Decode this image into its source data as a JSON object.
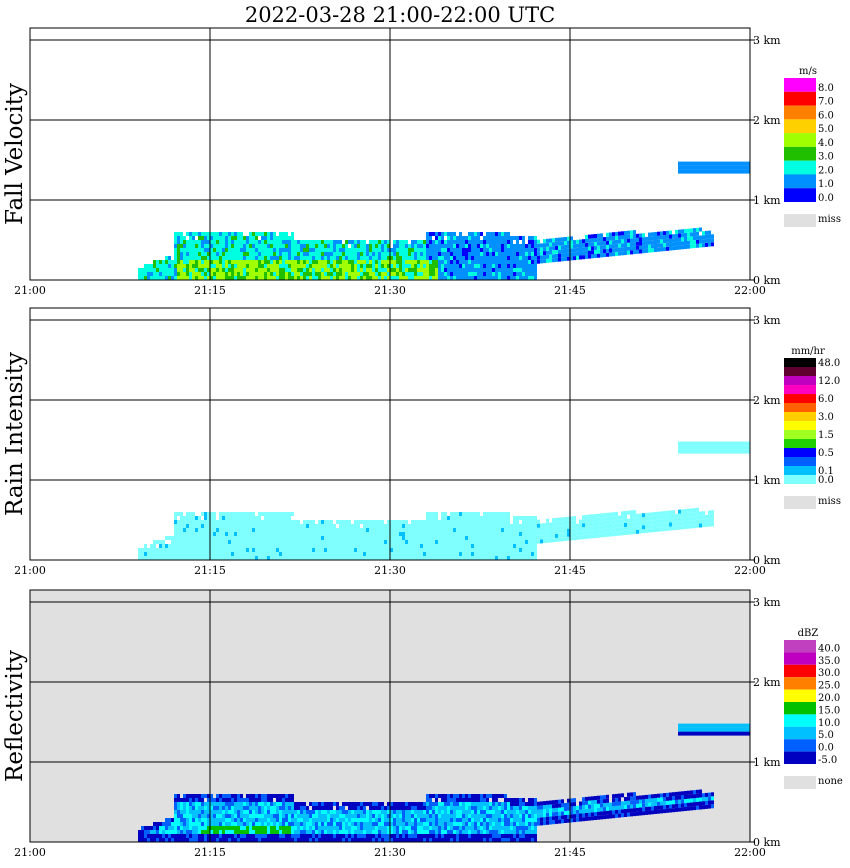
{
  "page_title": "2022-03-28   21:00-22:00 UTC",
  "x_ticks": [
    "21:00",
    "21:15",
    "21:30",
    "21:45",
    "22:00"
  ],
  "y_ticks": [
    "0 km",
    "1 km",
    "2 km",
    "3 km"
  ],
  "panels": [
    {
      "id": "fall-velocity",
      "ylabel": "Fall Velocity",
      "unit": "m/s",
      "background": "#ffffff",
      "legend_labels": [
        "8.0",
        "7.0",
        "6.0",
        "5.0",
        "4.0",
        "3.0",
        "2.0",
        "1.0",
        "0.0"
      ],
      "legend_colors": [
        "#ff00ff",
        "#ff0000",
        "#ff8000",
        "#ffd000",
        "#a0ff00",
        "#20c000",
        "#00ffe0",
        "#0090ff",
        "#0000ff"
      ],
      "miss_label": "miss"
    },
    {
      "id": "rain-intensity",
      "ylabel": "Rain Intensity",
      "unit": "mm/hr",
      "background": "#ffffff",
      "legend_labels": [
        "48.0",
        "",
        "12.0",
        "",
        "6.0",
        "",
        "3.0",
        "",
        "1.5",
        "",
        "0.5",
        "",
        "0.1",
        "0.0"
      ],
      "legend_colors": [
        "#000000",
        "#600030",
        "#c000c0",
        "#ff00c0",
        "#ff0000",
        "#ff6000",
        "#ffd000",
        "#ffff00",
        "#a0ff20",
        "#20d000",
        "#0000ff",
        "#0060ff",
        "#00c0ff",
        "#80ffff"
      ],
      "miss_label": "miss"
    },
    {
      "id": "reflectivity",
      "ylabel": "Reflectivity",
      "unit": "dBZ",
      "background": "#e0e0e0",
      "legend_labels": [
        "40.0",
        "35.0",
        "30.0",
        "25.0",
        "20.0",
        "15.0",
        "10.0",
        "5.0",
        "0.0",
        "-5.0"
      ],
      "legend_colors": [
        "#c040c0",
        "#c000c0",
        "#ff0000",
        "#ff8000",
        "#ffff00",
        "#00c000",
        "#00ffff",
        "#00c0ff",
        "#0060ff",
        "#0000c0"
      ],
      "miss_label": "none"
    }
  ],
  "chart_data": [
    {
      "type": "heatmap",
      "title": "Fall Velocity",
      "unit": "m/s",
      "x_range": [
        "21:00",
        "22:00"
      ],
      "ylim_km": [
        0,
        3.2
      ],
      "echo_regions": [
        {
          "x_start": "21:09",
          "x_end": "21:57",
          "y_min_km": 0.0,
          "y_max_km": 0.65,
          "dominant_value_mps": "1.0-3.0"
        },
        {
          "x_start": "21:10",
          "x_end": "21:34",
          "y_min_km": 0.0,
          "y_max_km": 0.3,
          "dominant_value_mps": "4.0-5.0"
        },
        {
          "x_start": "21:54",
          "x_end": "22:00",
          "y_min_km": 1.33,
          "y_max_km": 1.5,
          "dominant_value_mps": "1.0-2.0"
        }
      ]
    },
    {
      "type": "heatmap",
      "title": "Rain Intensity",
      "unit": "mm/hr",
      "x_range": [
        "21:00",
        "22:00"
      ],
      "ylim_km": [
        0,
        3.2
      ],
      "echo_regions": [
        {
          "x_start": "21:09",
          "x_end": "21:57",
          "y_min_km": 0.0,
          "y_max_km": 0.65,
          "dominant_value_mmhr": "0.0-0.1"
        },
        {
          "x_start": "21:54",
          "x_end": "22:00",
          "y_min_km": 1.33,
          "y_max_km": 1.5,
          "dominant_value_mmhr": "0.0-0.1"
        }
      ]
    },
    {
      "type": "heatmap",
      "title": "Reflectivity",
      "unit": "dBZ",
      "x_range": [
        "21:00",
        "22:00"
      ],
      "ylim_km": [
        0,
        3.2
      ],
      "echo_regions": [
        {
          "x_start": "21:09",
          "x_end": "21:57",
          "y_min_km": 0.0,
          "y_max_km": 0.65,
          "dominant_value_dbz": "-5.0-10.0"
        },
        {
          "x_start": "21:14",
          "x_end": "21:22",
          "y_min_km": 0.05,
          "y_max_km": 0.15,
          "dominant_value_dbz": "15.0"
        },
        {
          "x_start": "21:54",
          "x_end": "22:00",
          "y_min_km": 1.33,
          "y_max_km": 1.5,
          "dominant_value_dbz": "-5.0-0.0"
        }
      ]
    }
  ]
}
